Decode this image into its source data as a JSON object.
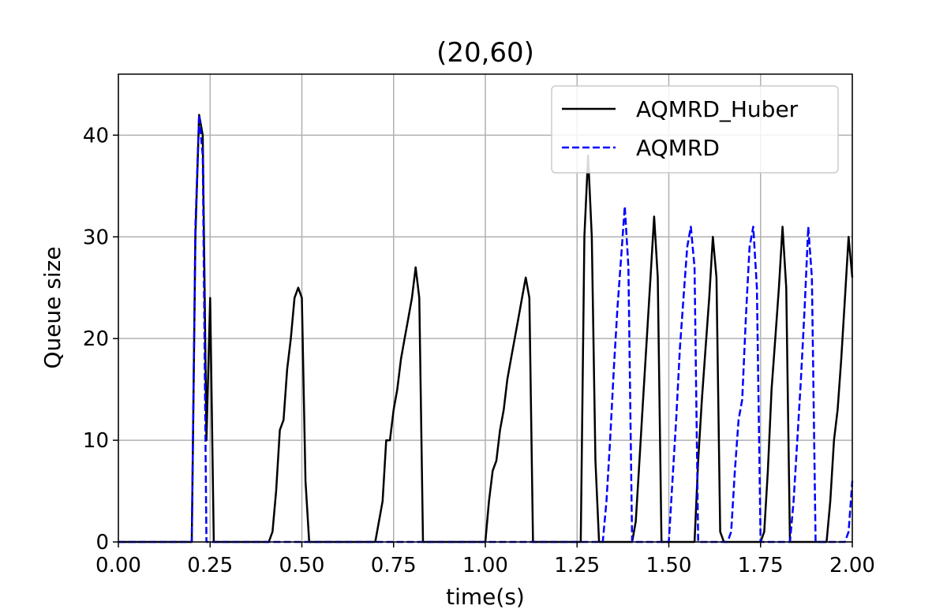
{
  "chart_data": {
    "type": "line",
    "title": "(20,60)",
    "xlabel": "time(s)",
    "ylabel": "Queue size",
    "xlim": [
      0.0,
      2.0
    ],
    "ylim": [
      0,
      46
    ],
    "xticks": [
      0.0,
      0.25,
      0.5,
      0.75,
      1.0,
      1.25,
      1.5,
      1.75,
      2.0
    ],
    "xtick_labels": [
      "0.00",
      "0.25",
      "0.50",
      "0.75",
      "1.00",
      "1.25",
      "1.50",
      "1.75",
      "2.00"
    ],
    "yticks": [
      0,
      10,
      20,
      30,
      40
    ],
    "ytick_labels": [
      "0",
      "10",
      "20",
      "30",
      "40"
    ],
    "grid": true,
    "legend_position": "top-right",
    "series": [
      {
        "name": "AQMRD_Huber",
        "color": "#000000",
        "style": "solid",
        "x": [
          0.0,
          0.2,
          0.21,
          0.22,
          0.23,
          0.24,
          0.25,
          0.26,
          0.27,
          0.41,
          0.42,
          0.43,
          0.44,
          0.45,
          0.46,
          0.47,
          0.48,
          0.49,
          0.5,
          0.51,
          0.52,
          0.53,
          0.54,
          0.55,
          0.7,
          0.72,
          0.73,
          0.74,
          0.75,
          0.76,
          0.77,
          0.78,
          0.79,
          0.8,
          0.81,
          0.82,
          0.83,
          0.84,
          1.0,
          1.01,
          1.02,
          1.03,
          1.04,
          1.05,
          1.06,
          1.07,
          1.08,
          1.09,
          1.1,
          1.11,
          1.12,
          1.13,
          1.14,
          1.26,
          1.27,
          1.28,
          1.29,
          1.3,
          1.31,
          1.32,
          1.4,
          1.41,
          1.42,
          1.43,
          1.44,
          1.45,
          1.46,
          1.47,
          1.48,
          1.49,
          1.57,
          1.58,
          1.59,
          1.6,
          1.61,
          1.62,
          1.63,
          1.64,
          1.65,
          1.66,
          1.67,
          1.75,
          1.76,
          1.77,
          1.78,
          1.79,
          1.8,
          1.81,
          1.82,
          1.83,
          1.84,
          1.93,
          1.94,
          1.95,
          1.96,
          1.97,
          1.98,
          1.99,
          2.0
        ],
        "y": [
          0,
          0,
          30,
          42,
          40,
          10,
          24,
          0,
          0,
          0,
          1,
          5,
          11,
          12,
          17,
          20,
          24,
          25,
          24,
          6,
          0,
          0,
          0,
          0,
          0,
          4,
          10,
          10,
          13,
          15,
          18,
          20,
          22,
          24,
          27,
          24,
          0,
          0,
          0,
          4,
          7,
          8,
          11,
          13,
          16,
          18,
          20,
          22,
          24,
          26,
          24,
          0,
          0,
          0,
          30,
          38,
          30,
          8,
          0,
          0,
          0,
          2,
          8,
          14,
          20,
          26,
          32,
          26,
          0,
          0,
          0,
          8,
          14,
          19,
          24,
          30,
          26,
          1,
          0,
          0,
          0,
          0,
          1,
          7,
          15,
          20,
          25,
          31,
          25,
          0,
          0,
          0,
          4,
          10,
          13,
          18,
          24,
          30,
          26
        ]
      },
      {
        "name": "AQMRD",
        "color": "#0000ff",
        "style": "dashed",
        "x": [
          0.0,
          0.2,
          0.21,
          0.22,
          0.23,
          0.24,
          0.25,
          0.26,
          1.32,
          1.33,
          1.34,
          1.35,
          1.36,
          1.37,
          1.38,
          1.39,
          1.4,
          1.41,
          1.42,
          1.5,
          1.51,
          1.52,
          1.53,
          1.54,
          1.55,
          1.56,
          1.57,
          1.58,
          1.59,
          1.66,
          1.67,
          1.68,
          1.69,
          1.7,
          1.71,
          1.72,
          1.73,
          1.74,
          1.75,
          1.76,
          1.83,
          1.84,
          1.85,
          1.86,
          1.87,
          1.88,
          1.89,
          1.9,
          1.97,
          1.98,
          1.99,
          2.0
        ],
        "y": [
          0,
          0,
          31,
          42,
          38,
          0,
          0,
          0,
          0,
          4,
          10,
          17,
          23,
          28,
          33,
          27,
          0,
          0,
          0,
          0,
          6,
          12,
          19,
          24,
          29,
          31,
          27,
          0,
          0,
          0,
          1,
          7,
          12,
          14,
          22,
          29,
          31,
          25,
          0,
          0,
          0,
          4,
          10,
          16,
          23,
          31,
          26,
          0,
          0,
          0,
          1,
          6
        ]
      }
    ]
  }
}
